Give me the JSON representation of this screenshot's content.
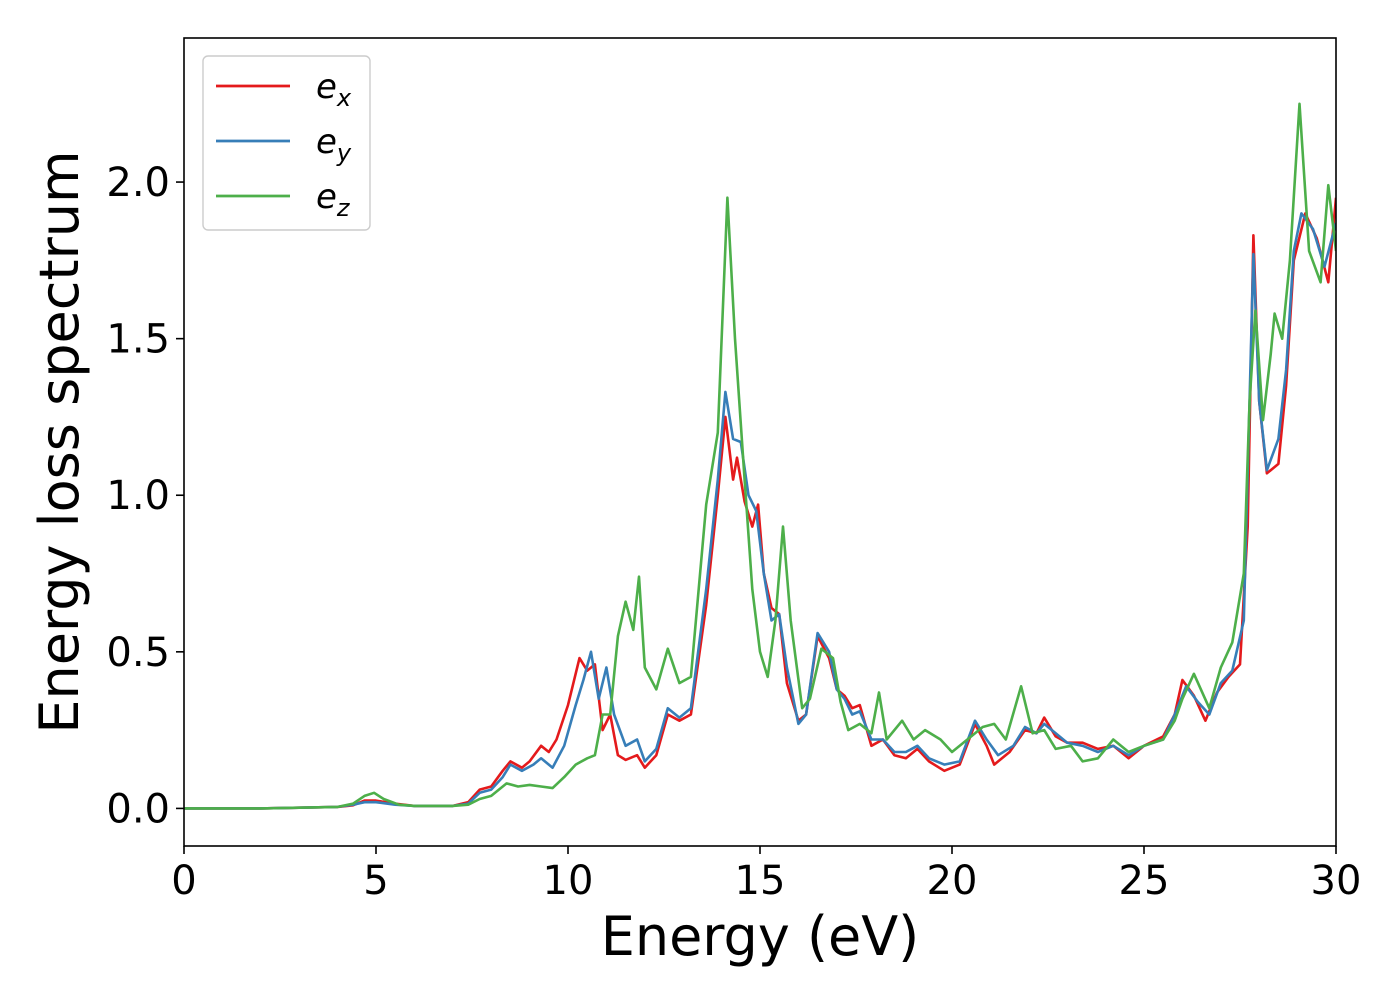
{
  "chart_data": {
    "type": "line",
    "title": "",
    "xlabel": "Energy (eV)",
    "ylabel": "Energy loss spectrum",
    "xlim": [
      0,
      30
    ],
    "ylim": [
      -0.12,
      2.46
    ],
    "xticks": [
      0,
      5,
      10,
      15,
      20,
      25,
      30
    ],
    "xtick_labels": [
      "0",
      "5",
      "10",
      "15",
      "20",
      "25",
      "30"
    ],
    "yticks": [
      0.0,
      0.5,
      1.0,
      1.5,
      2.0
    ],
    "ytick_labels": [
      "0.0",
      "0.5",
      "1.0",
      "1.5",
      "2.0"
    ],
    "grid": false,
    "legend_position": "top-left",
    "series": [
      {
        "name": "e_x",
        "legend_base": "e",
        "legend_sub": "x",
        "color": "#e41a1c",
        "points": [
          [
            0,
            0
          ],
          [
            2,
            0
          ],
          [
            4,
            0.005
          ],
          [
            4.4,
            0.01
          ],
          [
            4.7,
            0.025
          ],
          [
            5,
            0.025
          ],
          [
            5.5,
            0.015
          ],
          [
            6,
            0.008
          ],
          [
            7,
            0.008
          ],
          [
            7.4,
            0.02
          ],
          [
            7.7,
            0.06
          ],
          [
            8,
            0.07
          ],
          [
            8.3,
            0.12
          ],
          [
            8.5,
            0.15
          ],
          [
            8.8,
            0.13
          ],
          [
            9,
            0.15
          ],
          [
            9.3,
            0.2
          ],
          [
            9.5,
            0.18
          ],
          [
            9.7,
            0.22
          ],
          [
            10,
            0.33
          ],
          [
            10.3,
            0.48
          ],
          [
            10.5,
            0.44
          ],
          [
            10.7,
            0.46
          ],
          [
            10.9,
            0.25
          ],
          [
            11.1,
            0.3
          ],
          [
            11.3,
            0.17
          ],
          [
            11.5,
            0.155
          ],
          [
            11.8,
            0.17
          ],
          [
            12,
            0.13
          ],
          [
            12.3,
            0.17
          ],
          [
            12.6,
            0.3
          ],
          [
            12.9,
            0.28
          ],
          [
            13.2,
            0.3
          ],
          [
            13.6,
            0.65
          ],
          [
            13.9,
            1.0
          ],
          [
            14.1,
            1.25
          ],
          [
            14.3,
            1.05
          ],
          [
            14.4,
            1.12
          ],
          [
            14.6,
            0.98
          ],
          [
            14.8,
            0.9
          ],
          [
            14.95,
            0.97
          ],
          [
            15.1,
            0.75
          ],
          [
            15.3,
            0.64
          ],
          [
            15.5,
            0.62
          ],
          [
            15.7,
            0.4
          ],
          [
            16,
            0.28
          ],
          [
            16.2,
            0.3
          ],
          [
            16.5,
            0.55
          ],
          [
            16.8,
            0.48
          ],
          [
            17,
            0.38
          ],
          [
            17.2,
            0.36
          ],
          [
            17.4,
            0.32
          ],
          [
            17.6,
            0.33
          ],
          [
            17.9,
            0.2
          ],
          [
            18.2,
            0.22
          ],
          [
            18.5,
            0.17
          ],
          [
            18.8,
            0.16
          ],
          [
            19.1,
            0.19
          ],
          [
            19.4,
            0.15
          ],
          [
            19.8,
            0.12
          ],
          [
            20.2,
            0.14
          ],
          [
            20.6,
            0.27
          ],
          [
            20.9,
            0.2
          ],
          [
            21.1,
            0.14
          ],
          [
            21.5,
            0.18
          ],
          [
            21.9,
            0.25
          ],
          [
            22.2,
            0.24
          ],
          [
            22.4,
            0.29
          ],
          [
            22.7,
            0.23
          ],
          [
            23,
            0.21
          ],
          [
            23.4,
            0.21
          ],
          [
            23.8,
            0.19
          ],
          [
            24.2,
            0.2
          ],
          [
            24.6,
            0.16
          ],
          [
            25,
            0.2
          ],
          [
            25.5,
            0.23
          ],
          [
            25.8,
            0.3
          ],
          [
            26,
            0.41
          ],
          [
            26.3,
            0.36
          ],
          [
            26.6,
            0.28
          ],
          [
            26.9,
            0.37
          ],
          [
            27.2,
            0.42
          ],
          [
            27.5,
            0.46
          ],
          [
            27.7,
            0.9
          ],
          [
            27.85,
            1.83
          ],
          [
            28,
            1.3
          ],
          [
            28.2,
            1.07
          ],
          [
            28.5,
            1.1
          ],
          [
            28.7,
            1.35
          ],
          [
            28.9,
            1.75
          ],
          [
            29.2,
            1.9
          ],
          [
            29.5,
            1.82
          ],
          [
            29.8,
            1.68
          ],
          [
            30,
            1.95
          ]
        ]
      },
      {
        "name": "e_y",
        "legend_base": "e",
        "legend_sub": "y",
        "color": "#377eb8",
        "points": [
          [
            0,
            0
          ],
          [
            2,
            0
          ],
          [
            4,
            0.005
          ],
          [
            4.4,
            0.012
          ],
          [
            4.7,
            0.02
          ],
          [
            5,
            0.02
          ],
          [
            5.5,
            0.012
          ],
          [
            6,
            0.008
          ],
          [
            7,
            0.008
          ],
          [
            7.4,
            0.015
          ],
          [
            7.7,
            0.05
          ],
          [
            8,
            0.06
          ],
          [
            8.3,
            0.1
          ],
          [
            8.5,
            0.14
          ],
          [
            8.8,
            0.12
          ],
          [
            9.1,
            0.14
          ],
          [
            9.3,
            0.16
          ],
          [
            9.6,
            0.13
          ],
          [
            9.9,
            0.2
          ],
          [
            10.2,
            0.33
          ],
          [
            10.4,
            0.41
          ],
          [
            10.6,
            0.5
          ],
          [
            10.8,
            0.35
          ],
          [
            11,
            0.45
          ],
          [
            11.2,
            0.3
          ],
          [
            11.5,
            0.2
          ],
          [
            11.8,
            0.22
          ],
          [
            12,
            0.15
          ],
          [
            12.3,
            0.19
          ],
          [
            12.6,
            0.32
          ],
          [
            12.9,
            0.29
          ],
          [
            13.2,
            0.32
          ],
          [
            13.6,
            0.7
          ],
          [
            13.9,
            1.05
          ],
          [
            14.1,
            1.33
          ],
          [
            14.3,
            1.18
          ],
          [
            14.5,
            1.17
          ],
          [
            14.7,
            1.0
          ],
          [
            14.9,
            0.95
          ],
          [
            15.1,
            0.75
          ],
          [
            15.3,
            0.6
          ],
          [
            15.5,
            0.62
          ],
          [
            15.7,
            0.45
          ],
          [
            16,
            0.27
          ],
          [
            16.2,
            0.3
          ],
          [
            16.5,
            0.56
          ],
          [
            16.8,
            0.5
          ],
          [
            17,
            0.38
          ],
          [
            17.2,
            0.35
          ],
          [
            17.4,
            0.3
          ],
          [
            17.6,
            0.31
          ],
          [
            17.9,
            0.22
          ],
          [
            18.2,
            0.22
          ],
          [
            18.5,
            0.18
          ],
          [
            18.8,
            0.18
          ],
          [
            19.1,
            0.2
          ],
          [
            19.4,
            0.16
          ],
          [
            19.8,
            0.14
          ],
          [
            20.2,
            0.15
          ],
          [
            20.6,
            0.28
          ],
          [
            20.9,
            0.22
          ],
          [
            21.2,
            0.17
          ],
          [
            21.6,
            0.2
          ],
          [
            21.9,
            0.26
          ],
          [
            22.2,
            0.24
          ],
          [
            22.4,
            0.27
          ],
          [
            22.7,
            0.24
          ],
          [
            23,
            0.21
          ],
          [
            23.4,
            0.2
          ],
          [
            23.8,
            0.18
          ],
          [
            24.2,
            0.2
          ],
          [
            24.6,
            0.17
          ],
          [
            25,
            0.2
          ],
          [
            25.5,
            0.22
          ],
          [
            25.8,
            0.3
          ],
          [
            26.1,
            0.39
          ],
          [
            26.4,
            0.34
          ],
          [
            26.7,
            0.3
          ],
          [
            27,
            0.4
          ],
          [
            27.3,
            0.44
          ],
          [
            27.6,
            0.6
          ],
          [
            27.85,
            1.77
          ],
          [
            28,
            1.3
          ],
          [
            28.2,
            1.08
          ],
          [
            28.5,
            1.18
          ],
          [
            28.7,
            1.4
          ],
          [
            28.9,
            1.78
          ],
          [
            29.1,
            1.9
          ],
          [
            29.4,
            1.85
          ],
          [
            29.7,
            1.73
          ],
          [
            30,
            1.87
          ]
        ]
      },
      {
        "name": "e_z",
        "legend_base": "e",
        "legend_sub": "z",
        "color": "#4daf4a",
        "points": [
          [
            0,
            0
          ],
          [
            2,
            0
          ],
          [
            4,
            0.005
          ],
          [
            4.4,
            0.015
          ],
          [
            4.7,
            0.04
          ],
          [
            4.95,
            0.05
          ],
          [
            5.2,
            0.03
          ],
          [
            5.6,
            0.012
          ],
          [
            6,
            0.008
          ],
          [
            7,
            0.008
          ],
          [
            7.4,
            0.012
          ],
          [
            7.7,
            0.03
          ],
          [
            8,
            0.04
          ],
          [
            8.4,
            0.08
          ],
          [
            8.7,
            0.07
          ],
          [
            9,
            0.075
          ],
          [
            9.3,
            0.07
          ],
          [
            9.6,
            0.065
          ],
          [
            9.9,
            0.1
          ],
          [
            10.2,
            0.14
          ],
          [
            10.5,
            0.16
          ],
          [
            10.7,
            0.17
          ],
          [
            10.9,
            0.3
          ],
          [
            11.1,
            0.3
          ],
          [
            11.3,
            0.55
          ],
          [
            11.5,
            0.66
          ],
          [
            11.7,
            0.57
          ],
          [
            11.85,
            0.74
          ],
          [
            12,
            0.45
          ],
          [
            12.3,
            0.38
          ],
          [
            12.6,
            0.51
          ],
          [
            12.9,
            0.4
          ],
          [
            13.2,
            0.42
          ],
          [
            13.6,
            0.97
          ],
          [
            13.9,
            1.2
          ],
          [
            14.15,
            1.95
          ],
          [
            14.35,
            1.5
          ],
          [
            14.6,
            1.05
          ],
          [
            14.8,
            0.7
          ],
          [
            15,
            0.5
          ],
          [
            15.2,
            0.42
          ],
          [
            15.4,
            0.6
          ],
          [
            15.6,
            0.9
          ],
          [
            15.8,
            0.6
          ],
          [
            16.1,
            0.32
          ],
          [
            16.3,
            0.35
          ],
          [
            16.6,
            0.51
          ],
          [
            16.9,
            0.48
          ],
          [
            17.1,
            0.34
          ],
          [
            17.3,
            0.25
          ],
          [
            17.6,
            0.27
          ],
          [
            17.9,
            0.24
          ],
          [
            18.1,
            0.37
          ],
          [
            18.3,
            0.22
          ],
          [
            18.7,
            0.28
          ],
          [
            19,
            0.22
          ],
          [
            19.3,
            0.25
          ],
          [
            19.7,
            0.22
          ],
          [
            20,
            0.18
          ],
          [
            20.4,
            0.22
          ],
          [
            20.8,
            0.26
          ],
          [
            21.1,
            0.27
          ],
          [
            21.4,
            0.22
          ],
          [
            21.8,
            0.39
          ],
          [
            22.1,
            0.24
          ],
          [
            22.4,
            0.25
          ],
          [
            22.7,
            0.19
          ],
          [
            23.1,
            0.2
          ],
          [
            23.4,
            0.15
          ],
          [
            23.8,
            0.16
          ],
          [
            24.2,
            0.22
          ],
          [
            24.6,
            0.18
          ],
          [
            25,
            0.2
          ],
          [
            25.5,
            0.22
          ],
          [
            25.8,
            0.28
          ],
          [
            26,
            0.35
          ],
          [
            26.3,
            0.43
          ],
          [
            26.7,
            0.32
          ],
          [
            27,
            0.45
          ],
          [
            27.3,
            0.53
          ],
          [
            27.6,
            0.75
          ],
          [
            27.75,
            1.3
          ],
          [
            27.9,
            1.59
          ],
          [
            28.1,
            1.24
          ],
          [
            28.3,
            1.45
          ],
          [
            28.4,
            1.58
          ],
          [
            28.6,
            1.5
          ],
          [
            28.8,
            1.75
          ],
          [
            29.05,
            2.25
          ],
          [
            29.3,
            1.78
          ],
          [
            29.6,
            1.68
          ],
          [
            29.8,
            1.99
          ],
          [
            30,
            1.78
          ]
        ]
      }
    ]
  }
}
